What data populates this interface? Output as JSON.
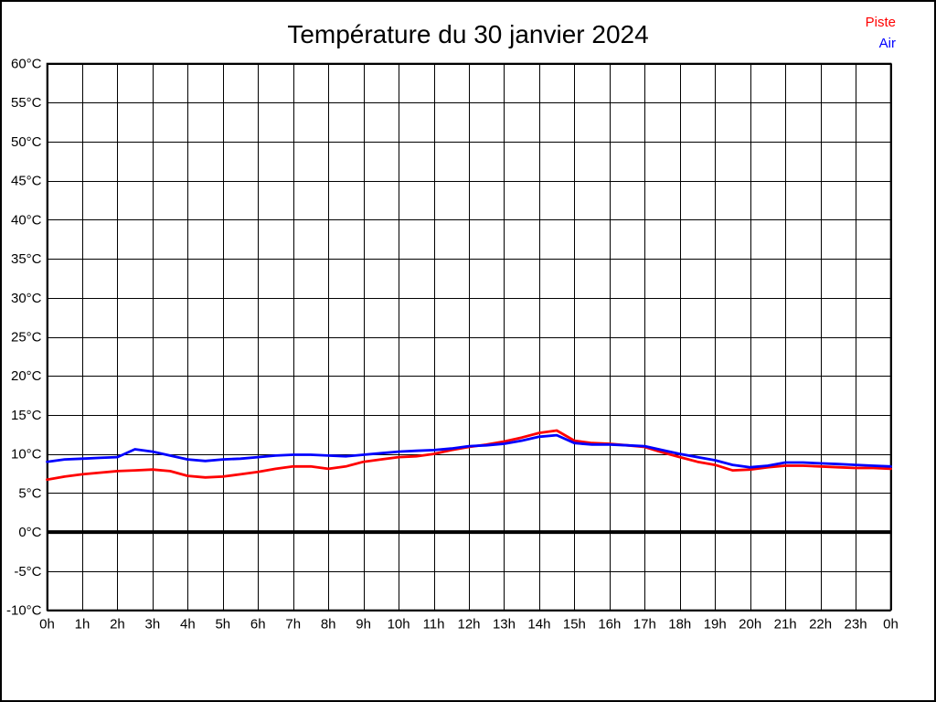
{
  "title": "Température du 30 janvier 2024",
  "legend": [
    {
      "label": "Piste",
      "color": "#ff0000"
    },
    {
      "label": "Air",
      "color": "#0000ff"
    }
  ],
  "chart_data": {
    "type": "line",
    "title": "Température du 30 janvier 2024",
    "xlabel": "",
    "ylabel": "°C",
    "xlim": [
      0,
      24
    ],
    "ylim": [
      -10,
      60
    ],
    "y_step": 5,
    "x_step": 1,
    "grid": true,
    "zero_line_bold": true,
    "legend_position": "top-right",
    "y_tick_labels": [
      "60°C",
      "55°C",
      "50°C",
      "45°C",
      "40°C",
      "35°C",
      "30°C",
      "25°C",
      "20°C",
      "15°C",
      "10°C",
      "5°C",
      "0°C",
      "-5°C",
      "-10°C"
    ],
    "x_tick_labels": [
      "0h",
      "1h",
      "2h",
      "3h",
      "4h",
      "5h",
      "6h",
      "7h",
      "8h",
      "9h",
      "10h",
      "11h",
      "12h",
      "13h",
      "14h",
      "15h",
      "16h",
      "17h",
      "18h",
      "19h",
      "20h",
      "21h",
      "22h",
      "23h",
      "0h"
    ],
    "x_hours": [
      0,
      0.5,
      1,
      1.5,
      2,
      2.5,
      3,
      3.5,
      4,
      4.5,
      5,
      5.5,
      6,
      6.5,
      7,
      7.5,
      8,
      8.5,
      9,
      9.5,
      10,
      10.5,
      11,
      11.5,
      12,
      12.5,
      13,
      13.5,
      14,
      14.5,
      15,
      15.5,
      16,
      16.5,
      17,
      17.5,
      18,
      18.5,
      19,
      19.5,
      20,
      20.5,
      21,
      21.5,
      22,
      22.5,
      23,
      23.5,
      24
    ],
    "series": [
      {
        "name": "Piste",
        "color": "#ff0000",
        "values": [
          6.7,
          7.1,
          7.4,
          7.6,
          7.8,
          7.9,
          8.0,
          7.8,
          7.2,
          7.0,
          7.1,
          7.4,
          7.7,
          8.1,
          8.4,
          8.4,
          8.1,
          8.4,
          9.0,
          9.3,
          9.6,
          9.7,
          10.0,
          10.5,
          10.9,
          11.2,
          11.6,
          12.1,
          12.7,
          13.0,
          11.7,
          11.4,
          11.3,
          11.1,
          10.9,
          10.2,
          9.6,
          9.0,
          8.6,
          7.9,
          8.0,
          8.3,
          8.5,
          8.5,
          8.4,
          8.3,
          8.2,
          8.2,
          8.1
        ]
      },
      {
        "name": "Air",
        "color": "#0000ff",
        "values": [
          9.0,
          9.3,
          9.4,
          9.5,
          9.6,
          10.6,
          10.3,
          9.8,
          9.3,
          9.1,
          9.3,
          9.4,
          9.6,
          9.8,
          9.9,
          9.9,
          9.8,
          9.7,
          9.9,
          10.1,
          10.3,
          10.4,
          10.5,
          10.7,
          11.0,
          11.1,
          11.3,
          11.7,
          12.2,
          12.4,
          11.4,
          11.2,
          11.2,
          11.1,
          11.0,
          10.5,
          10.0,
          9.6,
          9.2,
          8.6,
          8.3,
          8.5,
          8.9,
          8.9,
          8.8,
          8.7,
          8.6,
          8.5,
          8.4
        ]
      }
    ]
  }
}
